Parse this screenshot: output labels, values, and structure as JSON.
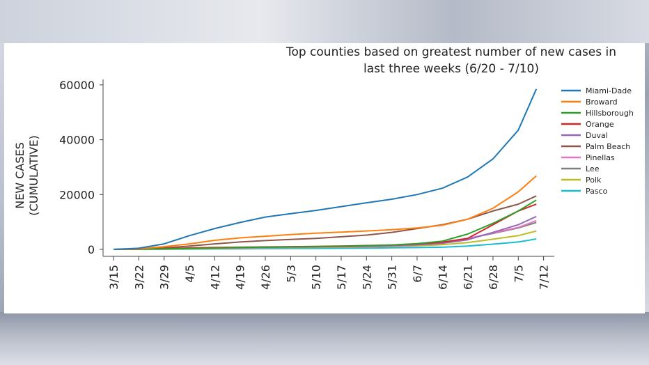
{
  "chart_data": {
    "type": "line",
    "title_lines": [
      "Top counties based on greatest number of new cases in",
      "last three weeks (6/20 - 7/10)"
    ],
    "ylabel_lines": [
      "NEW CASES",
      "(CUMULATIVE)"
    ],
    "xlabel": "",
    "ylim": [
      0,
      62000
    ],
    "yticks": [
      0,
      20000,
      40000,
      60000
    ],
    "ytick_labels": [
      "0",
      "20000",
      "40000",
      "60000"
    ],
    "x_domain": [
      0,
      121
    ],
    "xticks": [
      0,
      7,
      14,
      21,
      28,
      35,
      42,
      49,
      56,
      63,
      70,
      77,
      84,
      91,
      98,
      105,
      112,
      119
    ],
    "xtick_labels": [
      "3/15",
      "3/22",
      "3/29",
      "4/5",
      "4/12",
      "4/19",
      "4/26",
      "5/3",
      "5/10",
      "5/17",
      "5/24",
      "5/31",
      "6/7",
      "6/14",
      "6/21",
      "6/28",
      "7/5",
      "7/12"
    ],
    "grid": false,
    "legend_position": "right",
    "x_days": [
      0,
      7,
      14,
      21,
      28,
      35,
      42,
      49,
      56,
      63,
      70,
      77,
      84,
      91,
      98,
      105,
      112,
      117
    ],
    "series": [
      {
        "name": "Miami-Dade",
        "color": "#1f77b4",
        "values": [
          0,
          400,
          2000,
          5000,
          7600,
          9800,
          11800,
          13000,
          14200,
          15600,
          17000,
          18300,
          20000,
          22300,
          26400,
          33000,
          43500,
          58500
        ]
      },
      {
        "name": "Broward",
        "color": "#ff7f0e",
        "values": [
          0,
          200,
          1000,
          2000,
          3300,
          4200,
          4800,
          5400,
          5900,
          6300,
          6700,
          7200,
          7800,
          8800,
          11000,
          15000,
          21000,
          26800
        ]
      },
      {
        "name": "Hillsborough",
        "color": "#2ca02c",
        "values": [
          0,
          100,
          200,
          300,
          500,
          700,
          800,
          900,
          1000,
          1100,
          1300,
          1600,
          2100,
          3000,
          5600,
          9500,
          14000,
          18000
        ]
      },
      {
        "name": "Orange",
        "color": "#d62728",
        "values": [
          0,
          100,
          300,
          500,
          700,
          800,
          900,
          1000,
          1100,
          1200,
          1400,
          1600,
          2000,
          2600,
          4000,
          9000,
          14000,
          16500
        ]
      },
      {
        "name": "Duval",
        "color": "#9467bd",
        "values": [
          0,
          100,
          200,
          400,
          600,
          700,
          800,
          900,
          1000,
          1100,
          1200,
          1400,
          1700,
          2200,
          3500,
          6200,
          9000,
          12000
        ]
      },
      {
        "name": "Palm Beach",
        "color": "#8c564b",
        "values": [
          0,
          100,
          500,
          1200,
          2000,
          2700,
          3200,
          3600,
          4000,
          4600,
          5200,
          6200,
          7600,
          9000,
          11000,
          14000,
          16500,
          19500
        ]
      },
      {
        "name": "Pinellas",
        "color": "#e377c2",
        "values": [
          0,
          100,
          200,
          300,
          400,
          500,
          600,
          700,
          800,
          900,
          1000,
          1200,
          1600,
          2300,
          4000,
          6000,
          8000,
          10500
        ]
      },
      {
        "name": "Lee",
        "color": "#7f7f7f",
        "values": [
          0,
          100,
          200,
          400,
          600,
          700,
          800,
          900,
          1000,
          1100,
          1300,
          1500,
          1900,
          2600,
          4000,
          5800,
          7800,
          9800
        ]
      },
      {
        "name": "Polk",
        "color": "#bcbd22",
        "values": [
          0,
          50,
          100,
          200,
          300,
          400,
          500,
          600,
          700,
          800,
          900,
          1100,
          1300,
          1700,
          2500,
          3700,
          5000,
          6700
        ]
      },
      {
        "name": "Pasco",
        "color": "#17becf",
        "values": [
          0,
          30,
          60,
          100,
          150,
          200,
          250,
          300,
          350,
          400,
          450,
          550,
          650,
          800,
          1200,
          1900,
          2700,
          3800
        ]
      }
    ]
  }
}
